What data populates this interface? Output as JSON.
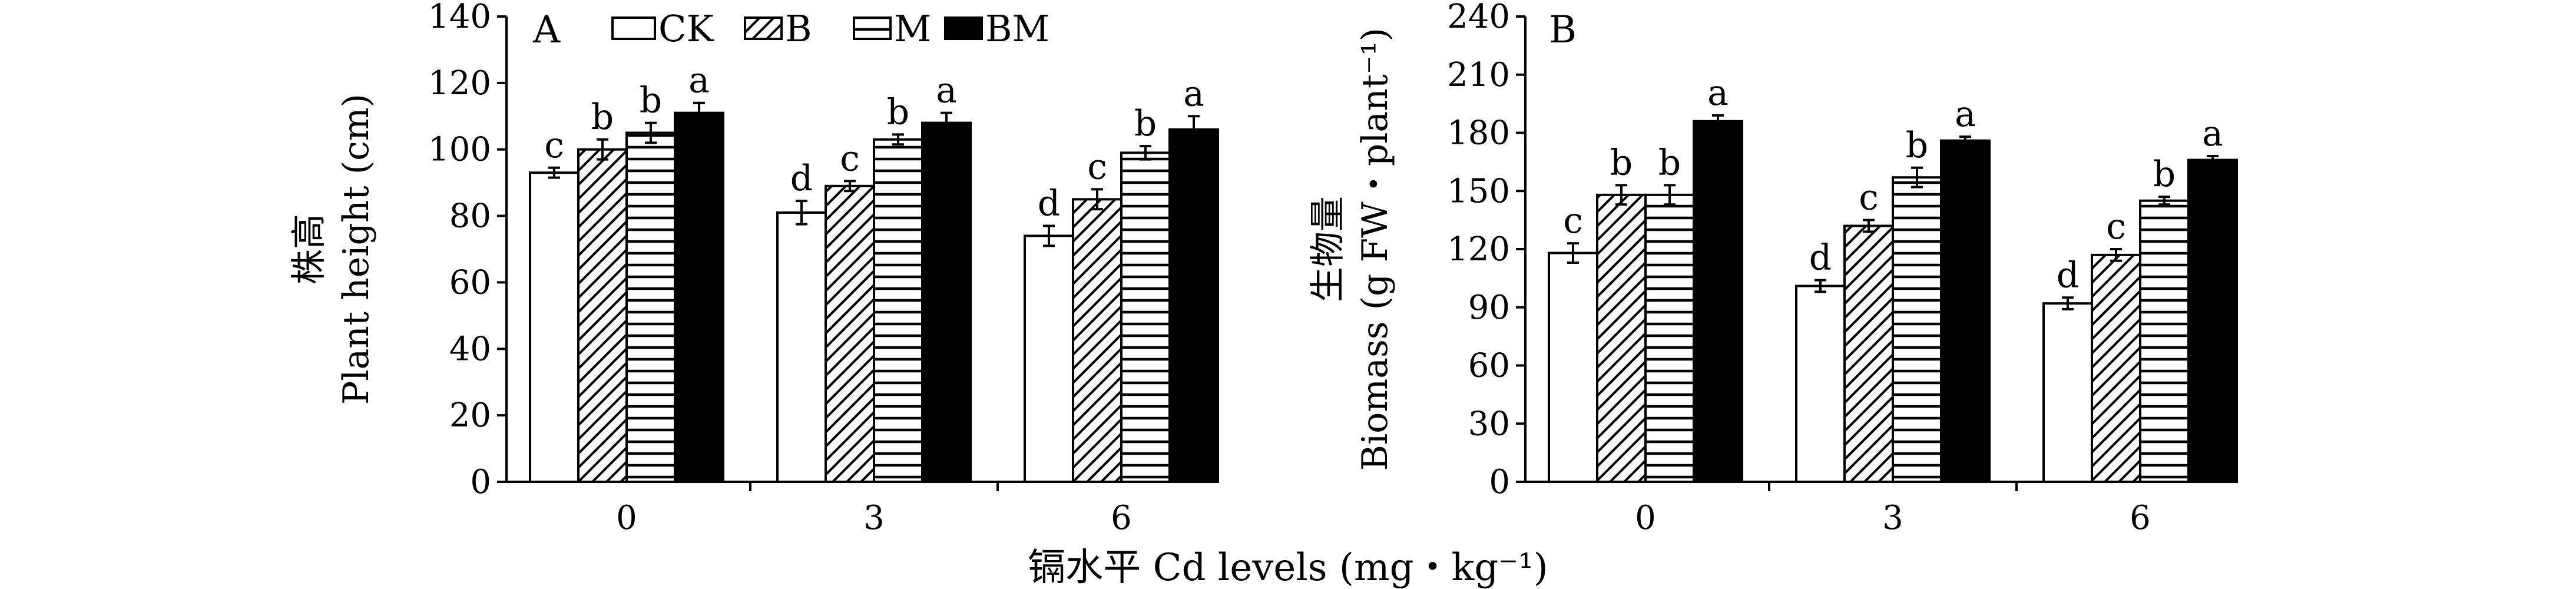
{
  "figure": {
    "xlabel": "镉水平 Cd levels (mg・kg⁻¹)"
  },
  "legend": {
    "items": [
      {
        "key": "CK",
        "label": "CK",
        "pattern": "empty"
      },
      {
        "key": "B",
        "label": "B",
        "pattern": "diagonal"
      },
      {
        "key": "M",
        "label": "M",
        "pattern": "horizontal"
      },
      {
        "key": "BM",
        "label": "BM",
        "pattern": "solid"
      }
    ]
  },
  "chart_data": [
    {
      "type": "bar",
      "panel_label": "A",
      "ylabel_cn": "株高",
      "ylabel": "Plant height (cm)",
      "ylim": [
        0,
        140
      ],
      "yticks": [
        0,
        20,
        40,
        60,
        80,
        100,
        120,
        140
      ],
      "categories": [
        "0",
        "3",
        "6"
      ],
      "grid": false,
      "legend_position": "top-left",
      "series": [
        {
          "name": "CK",
          "values": [
            93,
            81,
            74
          ],
          "errors": [
            1.5,
            3.5,
            3
          ],
          "letters": [
            "c",
            "d",
            "d"
          ]
        },
        {
          "name": "B",
          "values": [
            100,
            89,
            85
          ],
          "errors": [
            3,
            1.5,
            3
          ],
          "letters": [
            "b",
            "c",
            "c"
          ]
        },
        {
          "name": "M",
          "values": [
            105,
            103,
            99
          ],
          "errors": [
            3,
            1.5,
            2
          ],
          "letters": [
            "b",
            "b",
            "b"
          ]
        },
        {
          "name": "BM",
          "values": [
            111,
            108,
            106
          ],
          "errors": [
            3,
            3,
            4
          ],
          "letters": [
            "a",
            "a",
            "a"
          ]
        }
      ]
    },
    {
      "type": "bar",
      "panel_label": "B",
      "ylabel_cn": "生物量",
      "ylabel": "Biomass (g FW・plant⁻¹)",
      "ylim": [
        0,
        240
      ],
      "yticks": [
        0,
        30,
        60,
        90,
        120,
        150,
        180,
        210,
        240
      ],
      "categories": [
        "0",
        "3",
        "6"
      ],
      "grid": false,
      "series": [
        {
          "name": "CK",
          "values": [
            118,
            101,
            92
          ],
          "errors": [
            5,
            3,
            3
          ],
          "letters": [
            "c",
            "d",
            "d"
          ]
        },
        {
          "name": "B",
          "values": [
            148,
            132,
            117
          ],
          "errors": [
            5,
            3,
            3
          ],
          "letters": [
            "b",
            "c",
            "c"
          ]
        },
        {
          "name": "M",
          "values": [
            148,
            157,
            145
          ],
          "errors": [
            5,
            5,
            2
          ],
          "letters": [
            "b",
            "b",
            "b"
          ]
        },
        {
          "name": "BM",
          "values": [
            186,
            176,
            166
          ],
          "errors": [
            3,
            2,
            2
          ],
          "letters": [
            "a",
            "a",
            "a"
          ]
        }
      ]
    }
  ]
}
